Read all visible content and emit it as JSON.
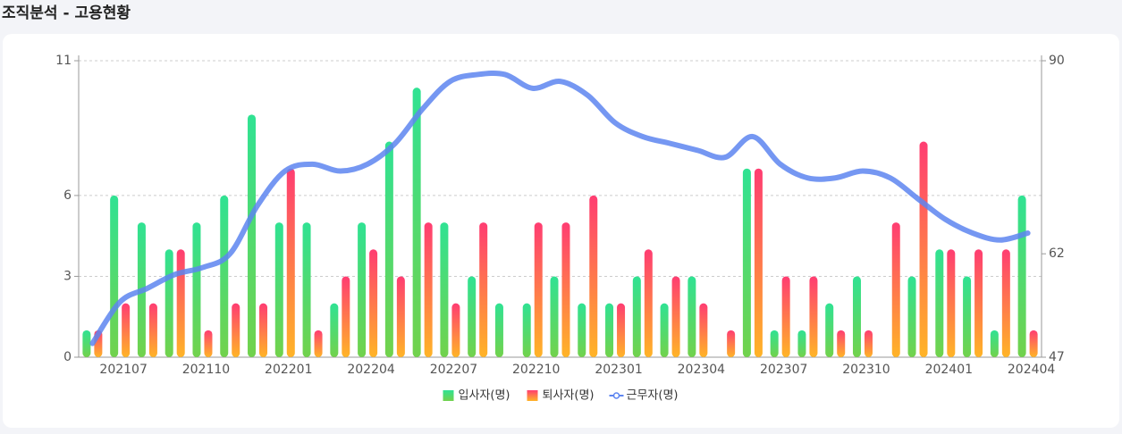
{
  "chart_data": {
    "type": "bar_line",
    "title": "조직분석 - 고용현황",
    "categories": [
      null,
      "202107",
      null,
      null,
      "202110",
      null,
      null,
      "202201",
      null,
      null,
      "202204",
      null,
      null,
      "202207",
      null,
      null,
      "202210",
      null,
      null,
      "202301",
      null,
      null,
      "202304",
      null,
      null,
      "202307",
      null,
      null,
      "202310",
      null,
      null,
      "202401",
      null,
      null,
      "202404"
    ],
    "series": [
      {
        "name": "입사자(명)",
        "type": "bar",
        "colors": [
          "#30e293",
          "#72d24c"
        ],
        "values": [
          1,
          6,
          5,
          4,
          5,
          6,
          9,
          5,
          5,
          2,
          5,
          8,
          10,
          5,
          3,
          2,
          2,
          3,
          2,
          2,
          3,
          2,
          3,
          0,
          7,
          1,
          1,
          2,
          3,
          0,
          3,
          4,
          3,
          1,
          6
        ]
      },
      {
        "name": "퇴사자(명)",
        "type": "bar",
        "colors": [
          "#ff3d72",
          "#ffb427"
        ],
        "values": [
          1,
          2,
          2,
          4,
          1,
          2,
          2,
          7,
          1,
          3,
          4,
          3,
          5,
          2,
          5,
          0,
          5,
          5,
          6,
          2,
          4,
          3,
          2,
          1,
          7,
          3,
          3,
          1,
          1,
          5,
          8,
          4,
          4,
          4,
          1
        ]
      },
      {
        "name": "근무자(명)",
        "type": "line",
        "axis": "y2",
        "color": "#5d85f0",
        "values": [
          49,
          55,
          57,
          59,
          60,
          62,
          69,
          74,
          75,
          74,
          75,
          78,
          83,
          87,
          88,
          88,
          86,
          87,
          85,
          81,
          79,
          78,
          77,
          76,
          79,
          75,
          73,
          73,
          74,
          73,
          70,
          67,
          65,
          64,
          65
        ]
      }
    ],
    "ylim": [
      0,
      11
    ],
    "yticks": [
      0,
      3,
      6,
      11
    ],
    "y2lim": [
      47,
      90
    ],
    "y2ticks": [
      47,
      62,
      90
    ],
    "grid": true,
    "legend": "bottom"
  }
}
